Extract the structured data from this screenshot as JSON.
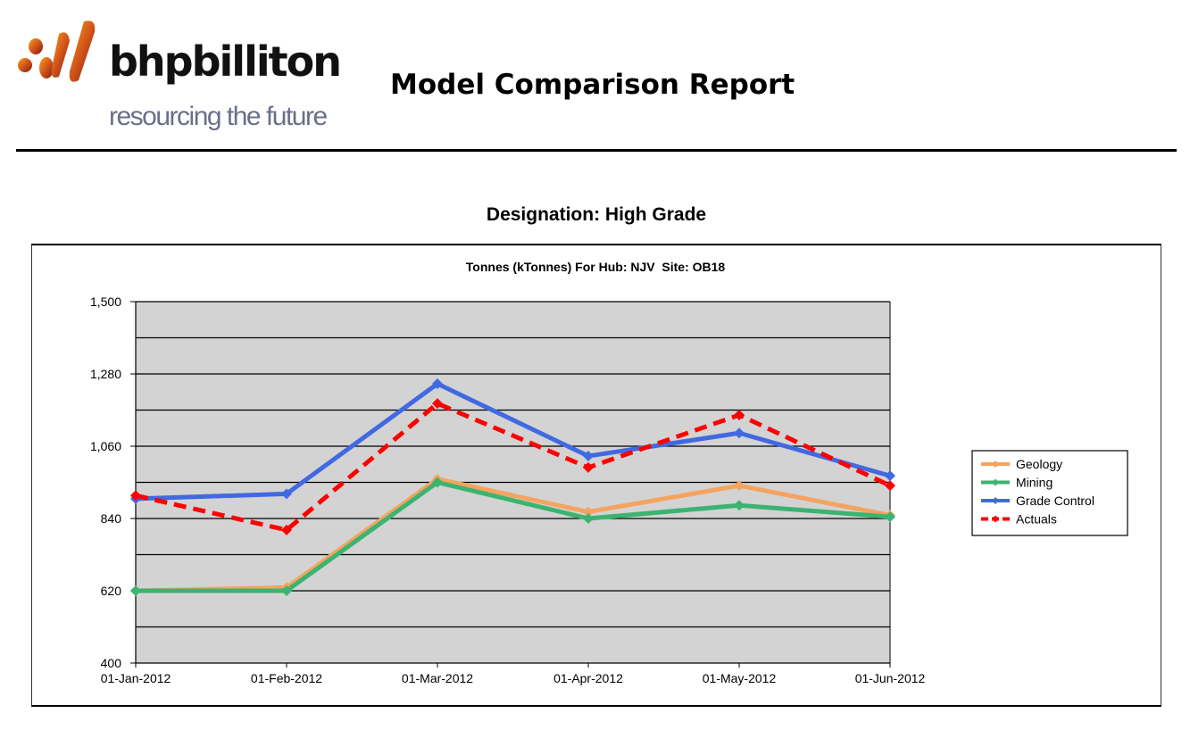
{
  "header": {
    "brand_name": "bhpbilliton",
    "tagline": "resourcing the future",
    "report_title": "Model Comparison Report"
  },
  "designation_label": "Designation: High Grade",
  "chart_data": {
    "type": "line",
    "title": "Tonnes (kTonnes) For Hub: NJV  Site: OB18",
    "xlabel": "",
    "ylabel": "",
    "categories": [
      "01-Jan-2012",
      "01-Feb-2012",
      "01-Mar-2012",
      "01-Apr-2012",
      "01-May-2012",
      "01-Jun-2012"
    ],
    "ylim": [
      400,
      1500
    ],
    "yticks": [
      "400",
      "620",
      "840",
      "1,060",
      "1,280",
      "1,500"
    ],
    "grid": true,
    "legend_position": "right",
    "series": [
      {
        "name": "Geology",
        "color": "#f4a460",
        "dashed": false,
        "values": [
          620,
          630,
          960,
          860,
          940,
          850
        ]
      },
      {
        "name": "Mining",
        "color": "#3cb371",
        "dashed": false,
        "values": [
          620,
          620,
          950,
          840,
          880,
          845
        ]
      },
      {
        "name": "Grade Control",
        "color": "#4169e1",
        "dashed": false,
        "values": [
          900,
          915,
          1250,
          1030,
          1100,
          970
        ]
      },
      {
        "name": "Actuals",
        "color": "#ff0000",
        "dashed": true,
        "values": [
          910,
          805,
          1190,
          995,
          1155,
          940
        ]
      }
    ]
  }
}
